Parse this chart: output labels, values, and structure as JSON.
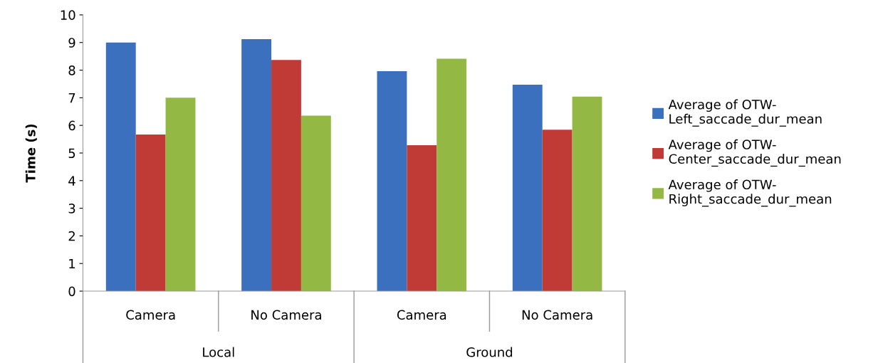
{
  "chart_data": {
    "type": "bar",
    "ylabel": "Time (s)",
    "categories": [
      "Camera",
      "No Camera",
      "Camera",
      "No Camera"
    ],
    "series": [
      {
        "name": "Average of OTW-Left_saccade_dur_mean",
        "color": "#3a70bd",
        "values": [
          9.0,
          9.12,
          7.96,
          7.47
        ]
      },
      {
        "name": "Average of OTW-Center_saccade_dur_mean",
        "color": "#c03a36",
        "values": [
          5.67,
          8.37,
          5.28,
          5.84
        ]
      },
      {
        "name": "Average of OTW-Right_saccade_dur_mean",
        "color": "#93b944",
        "values": [
          7.0,
          6.35,
          8.41,
          7.04
        ]
      }
    ],
    "annotations": [
      "Local",
      "Ground"
    ],
    "ylim": [
      0,
      10
    ],
    "yticks": [
      0,
      1,
      2,
      3,
      4,
      5,
      6,
      7,
      8,
      9,
      10
    ],
    "legend": "right",
    "grid": false
  }
}
